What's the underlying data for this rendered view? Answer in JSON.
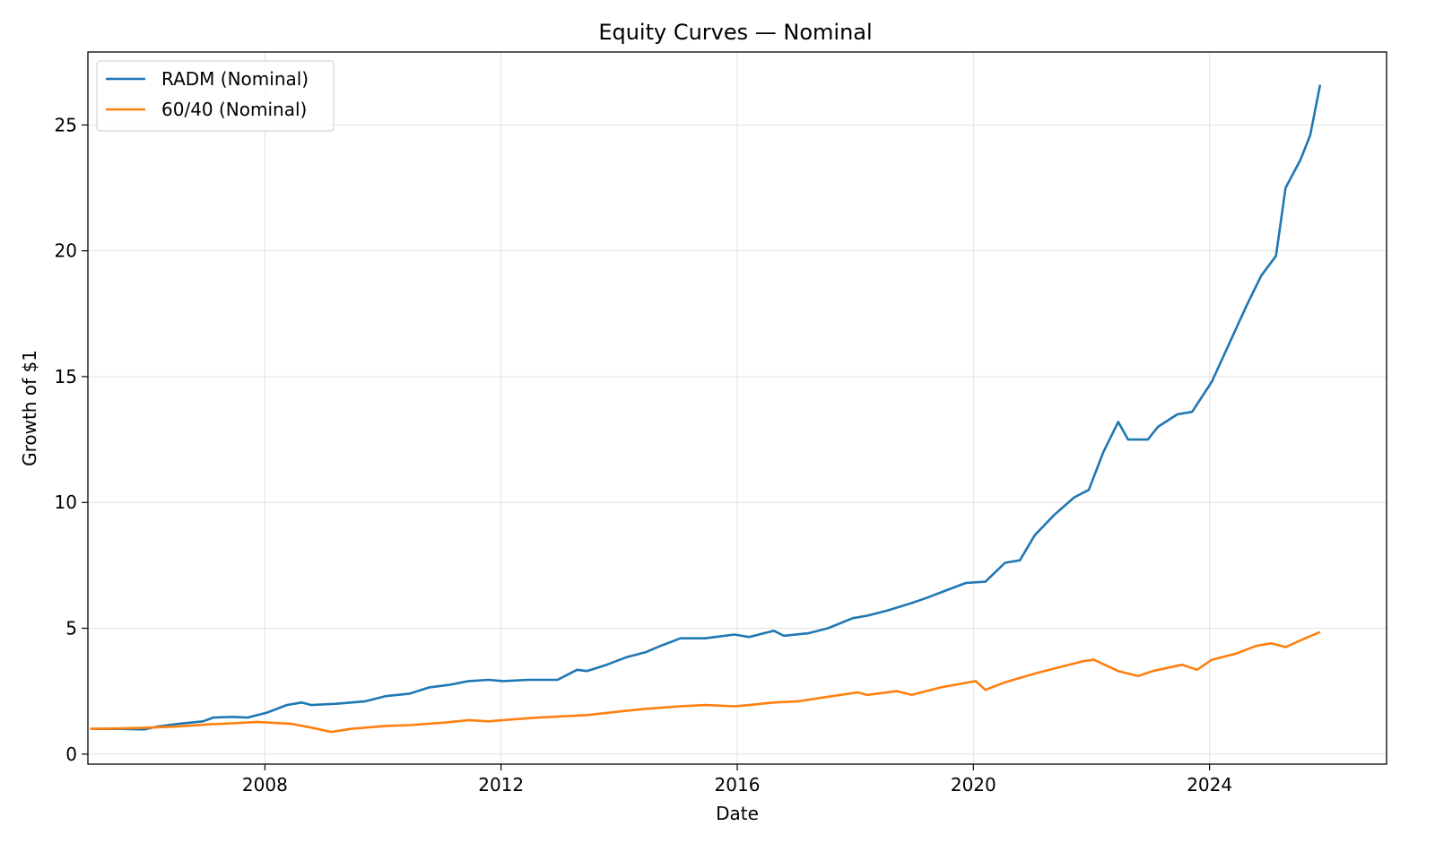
{
  "chart_data": {
    "type": "line",
    "title": "Equity Curves — Nominal",
    "xlabel": "Date",
    "ylabel": "Growth of $1",
    "xlim": [
      "2005-01-01",
      "2026-12-31"
    ],
    "ylim": [
      -0.4,
      27.9
    ],
    "xticks": [
      {
        "date": "2008-01-01",
        "label": "2008"
      },
      {
        "date": "2012-01-01",
        "label": "2012"
      },
      {
        "date": "2016-01-01",
        "label": "2016"
      },
      {
        "date": "2020-01-01",
        "label": "2020"
      },
      {
        "date": "2024-01-01",
        "label": "2024"
      }
    ],
    "yticks": [
      {
        "value": 0,
        "label": "0"
      },
      {
        "value": 5,
        "label": "5"
      },
      {
        "value": 10,
        "label": "10"
      },
      {
        "value": 15,
        "label": "15"
      },
      {
        "value": 20,
        "label": "20"
      },
      {
        "value": 25,
        "label": "25"
      }
    ],
    "grid": true,
    "legend_position": "top-left",
    "series": [
      {
        "name": "RADM (Nominal)",
        "color": "#1f77b4",
        "points": [
          [
            "2005-01",
            1.0
          ],
          [
            "2005-07",
            1.0
          ],
          [
            "2005-12",
            0.98
          ],
          [
            "2006-03",
            1.1
          ],
          [
            "2006-07",
            1.2
          ],
          [
            "2006-12",
            1.3
          ],
          [
            "2007-02",
            1.45
          ],
          [
            "2007-06",
            1.48
          ],
          [
            "2007-09",
            1.45
          ],
          [
            "2008-01",
            1.65
          ],
          [
            "2008-05",
            1.95
          ],
          [
            "2008-08",
            2.05
          ],
          [
            "2008-10",
            1.95
          ],
          [
            "2009-03",
            2.0
          ],
          [
            "2009-06",
            2.05
          ],
          [
            "2009-09",
            2.1
          ],
          [
            "2010-01",
            2.3
          ],
          [
            "2010-06",
            2.4
          ],
          [
            "2010-10",
            2.65
          ],
          [
            "2011-02",
            2.75
          ],
          [
            "2011-06",
            2.9
          ],
          [
            "2011-10",
            2.95
          ],
          [
            "2012-01",
            2.9
          ],
          [
            "2012-06",
            2.95
          ],
          [
            "2012-12",
            2.95
          ],
          [
            "2013-04",
            3.35
          ],
          [
            "2013-06",
            3.3
          ],
          [
            "2013-10",
            3.55
          ],
          [
            "2014-02",
            3.85
          ],
          [
            "2014-06",
            4.05
          ],
          [
            "2014-09",
            4.3
          ],
          [
            "2015-01",
            4.6
          ],
          [
            "2015-06",
            4.6
          ],
          [
            "2015-12",
            4.75
          ],
          [
            "2016-03",
            4.65
          ],
          [
            "2016-08",
            4.9
          ],
          [
            "2016-10",
            4.7
          ],
          [
            "2017-03",
            4.8
          ],
          [
            "2017-07",
            5.0
          ],
          [
            "2017-12",
            5.4
          ],
          [
            "2018-03",
            5.5
          ],
          [
            "2018-07",
            5.7
          ],
          [
            "2018-12",
            6.0
          ],
          [
            "2019-03",
            6.2
          ],
          [
            "2019-07",
            6.5
          ],
          [
            "2019-11",
            6.8
          ],
          [
            "2020-03",
            6.85
          ],
          [
            "2020-07",
            7.6
          ],
          [
            "2020-10",
            7.7
          ],
          [
            "2021-01",
            8.7
          ],
          [
            "2021-05",
            9.5
          ],
          [
            "2021-09",
            10.2
          ],
          [
            "2021-12",
            10.5
          ],
          [
            "2022-03",
            12.0
          ],
          [
            "2022-06",
            13.2
          ],
          [
            "2022-08",
            12.5
          ],
          [
            "2022-12",
            12.5
          ],
          [
            "2023-02",
            13.0
          ],
          [
            "2023-06",
            13.5
          ],
          [
            "2023-09",
            13.6
          ],
          [
            "2024-01",
            14.8
          ],
          [
            "2024-05",
            16.5
          ],
          [
            "2024-08",
            17.8
          ],
          [
            "2024-11",
            19.0
          ],
          [
            "2025-02",
            19.8
          ],
          [
            "2025-04",
            22.5
          ],
          [
            "2025-07",
            23.6
          ],
          [
            "2025-09",
            24.6
          ],
          [
            "2025-11",
            26.6
          ]
        ]
      },
      {
        "name": "60/40 (Nominal)",
        "color": "#ff7f0e",
        "points": [
          [
            "2005-01",
            1.0
          ],
          [
            "2005-07",
            1.02
          ],
          [
            "2006-01",
            1.05
          ],
          [
            "2006-07",
            1.1
          ],
          [
            "2007-01",
            1.18
          ],
          [
            "2007-06",
            1.22
          ],
          [
            "2007-11",
            1.28
          ],
          [
            "2008-06",
            1.2
          ],
          [
            "2008-10",
            1.05
          ],
          [
            "2009-02",
            0.88
          ],
          [
            "2009-06",
            1.0
          ],
          [
            "2010-01",
            1.12
          ],
          [
            "2010-06",
            1.15
          ],
          [
            "2011-01",
            1.25
          ],
          [
            "2011-06",
            1.35
          ],
          [
            "2011-10",
            1.3
          ],
          [
            "2012-03",
            1.38
          ],
          [
            "2012-08",
            1.45
          ],
          [
            "2013-01",
            1.5
          ],
          [
            "2013-06",
            1.55
          ],
          [
            "2014-01",
            1.7
          ],
          [
            "2014-06",
            1.8
          ],
          [
            "2015-01",
            1.9
          ],
          [
            "2015-06",
            1.95
          ],
          [
            "2015-12",
            1.9
          ],
          [
            "2016-03",
            1.95
          ],
          [
            "2016-08",
            2.05
          ],
          [
            "2017-01",
            2.1
          ],
          [
            "2017-06",
            2.25
          ],
          [
            "2018-01",
            2.45
          ],
          [
            "2018-03",
            2.35
          ],
          [
            "2018-09",
            2.5
          ],
          [
            "2018-12",
            2.35
          ],
          [
            "2019-06",
            2.65
          ],
          [
            "2020-01",
            2.9
          ],
          [
            "2020-03",
            2.55
          ],
          [
            "2020-07",
            2.85
          ],
          [
            "2021-01",
            3.2
          ],
          [
            "2021-06",
            3.45
          ],
          [
            "2021-11",
            3.7
          ],
          [
            "2022-01",
            3.75
          ],
          [
            "2022-06",
            3.3
          ],
          [
            "2022-10",
            3.1
          ],
          [
            "2023-01",
            3.3
          ],
          [
            "2023-07",
            3.55
          ],
          [
            "2023-10",
            3.35
          ],
          [
            "2024-01",
            3.75
          ],
          [
            "2024-06",
            4.0
          ],
          [
            "2024-10",
            4.3
          ],
          [
            "2025-01",
            4.4
          ],
          [
            "2025-04",
            4.25
          ],
          [
            "2025-08",
            4.6
          ],
          [
            "2025-11",
            4.85
          ]
        ]
      }
    ]
  }
}
